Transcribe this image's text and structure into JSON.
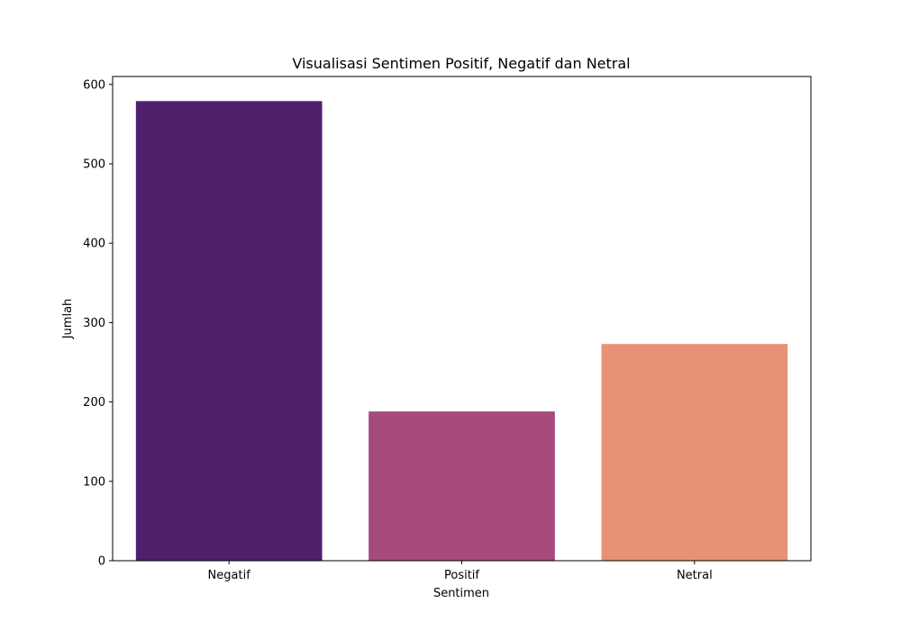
{
  "chart_data": {
    "type": "bar",
    "title": "Visualisasi Sentimen Positif, Negatif dan Netral",
    "xlabel": "Sentimen",
    "ylabel": "Jumlah",
    "categories": [
      "Negatif",
      "Positif",
      "Netral"
    ],
    "values": [
      579,
      188,
      273
    ],
    "colors": [
      "#4f1f6b",
      "#a64a7b",
      "#e79274"
    ],
    "ylim": [
      0,
      610
    ],
    "yticks": [
      0,
      100,
      200,
      300,
      400,
      500,
      600
    ],
    "grid": false,
    "legend": "none"
  }
}
